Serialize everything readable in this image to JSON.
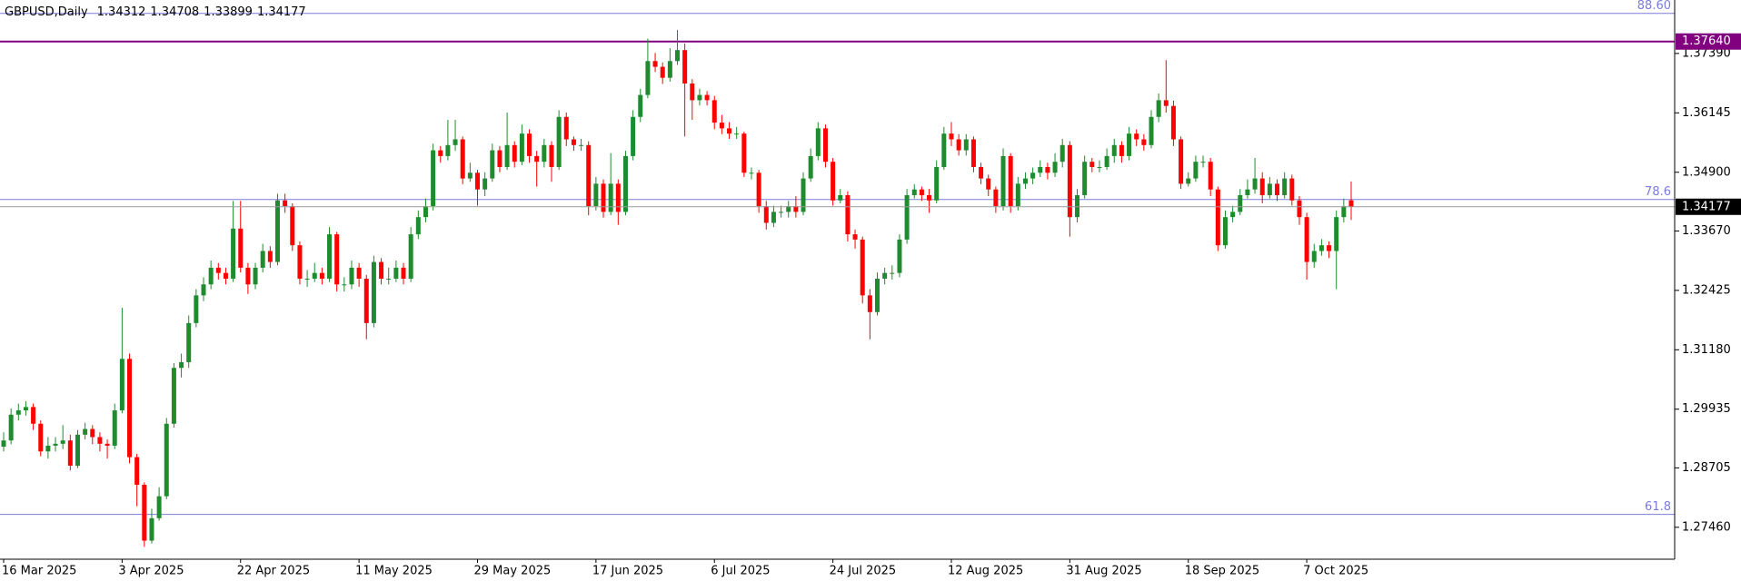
{
  "chart_data": {
    "type": "candlestick",
    "title": "GBPUSD,Daily",
    "up_color": "#1e8c2e",
    "down_color": "#ff0000",
    "ylim": [
      1.2681,
      1.3851
    ],
    "yticks": [
      {
        "value": 1.2746,
        "label": "1.27460"
      },
      1.28705,
      1.29935,
      {
        "value": 1.3118,
        "label": "1.31180"
      },
      1.32425,
      {
        "value": 1.3367,
        "label": "1.33670"
      },
      {
        "value": 1.349,
        "label": "1.34900"
      },
      1.36145,
      {
        "value": 1.3739,
        "label": "1.37390"
      }
    ],
    "x_labels": [
      "16 Mar 2025",
      "3 Apr 2025",
      "22 Apr 2025",
      "11 May 2025",
      "29 May 2025",
      "17 Jun 2025",
      "6 Jul 2025",
      "24 Jul 2025",
      "12 Aug 2025",
      "31 Aug 2025",
      "18 Sep 2025",
      "7 Oct 2025"
    ],
    "levels": [
      {
        "label": "88.60",
        "value": 1.3823,
        "color": "#7b7bdc"
      },
      {
        "label": "78.6",
        "value": 1.3433,
        "color": "#7b7bdc"
      },
      {
        "label": "61.8",
        "value": 1.2773,
        "color": "#7b7bdc"
      }
    ],
    "marked_level": {
      "value": 1.3764,
      "label": "1.37640",
      "color": "#800080"
    },
    "candles": [
      [
        1.2915,
        1.2945,
        1.2905,
        1.2928
      ],
      [
        1.2928,
        1.2995,
        1.292,
        1.2982
      ],
      [
        1.2982,
        1.3005,
        1.297,
        1.2991
      ],
      [
        1.2991,
        1.301,
        1.298,
        1.2998
      ],
      [
        1.2998,
        1.3005,
        1.295,
        1.2963
      ],
      [
        1.2963,
        1.297,
        1.2895,
        1.2905
      ],
      [
        1.2905,
        1.2935,
        1.289,
        1.2917
      ],
      [
        1.2917,
        1.2935,
        1.2905,
        1.2921
      ],
      [
        1.2921,
        1.296,
        1.291,
        1.2928
      ],
      [
        1.2928,
        1.294,
        1.2865,
        1.2875
      ],
      [
        1.2875,
        1.295,
        1.287,
        1.294
      ],
      [
        1.294,
        1.2965,
        1.293,
        1.2952
      ],
      [
        1.2952,
        1.296,
        1.292,
        1.2935
      ],
      [
        1.2935,
        1.2945,
        1.2905,
        1.2921
      ],
      [
        1.2921,
        1.293,
        1.289,
        1.2917
      ],
      [
        1.2917,
        1.3005,
        1.291,
        1.2991
      ],
      [
        1.2991,
        1.3206,
        1.2985,
        1.3099
      ],
      [
        1.3099,
        1.311,
        1.288,
        1.2893
      ],
      [
        1.2893,
        1.29,
        1.279,
        1.2835
      ],
      [
        1.2835,
        1.284,
        1.2705,
        1.2718
      ],
      [
        1.2718,
        1.2785,
        1.2712,
        1.2765
      ],
      [
        1.2765,
        1.283,
        1.276,
        1.2811
      ],
      [
        1.2811,
        1.2975,
        1.2805,
        1.2963
      ],
      [
        1.2963,
        1.309,
        1.2955,
        1.308
      ],
      [
        1.308,
        1.311,
        1.306,
        1.3092
      ],
      [
        1.3092,
        1.319,
        1.308,
        1.3174
      ],
      [
        1.3174,
        1.3245,
        1.3165,
        1.3232
      ],
      [
        1.3232,
        1.327,
        1.322,
        1.3255
      ],
      [
        1.3255,
        1.3305,
        1.3245,
        1.329
      ],
      [
        1.329,
        1.33,
        1.3265,
        1.3279
      ],
      [
        1.3279,
        1.329,
        1.3255,
        1.3267
      ],
      [
        1.3267,
        1.343,
        1.326,
        1.3372
      ],
      [
        1.3372,
        1.343,
        1.328,
        1.329
      ],
      [
        1.329,
        1.33,
        1.3235,
        1.3255
      ],
      [
        1.3255,
        1.33,
        1.3245,
        1.329
      ],
      [
        1.329,
        1.334,
        1.328,
        1.3325
      ],
      [
        1.3325,
        1.3335,
        1.329,
        1.3302
      ],
      [
        1.3302,
        1.3445,
        1.3295,
        1.3431
      ],
      [
        1.3431,
        1.3445,
        1.3405,
        1.3419
      ],
      [
        1.3419,
        1.3425,
        1.3325,
        1.3337
      ],
      [
        1.3337,
        1.3345,
        1.3255,
        1.3267
      ],
      [
        1.3267,
        1.3285,
        1.325,
        1.3267
      ],
      [
        1.3267,
        1.33,
        1.326,
        1.3279
      ],
      [
        1.3279,
        1.329,
        1.3255,
        1.3267
      ],
      [
        1.3267,
        1.3375,
        1.326,
        1.336
      ],
      [
        1.336,
        1.3365,
        1.324,
        1.3255
      ],
      [
        1.3255,
        1.327,
        1.324,
        1.3255
      ],
      [
        1.3255,
        1.3305,
        1.3245,
        1.329
      ],
      [
        1.329,
        1.33,
        1.325,
        1.3267
      ],
      [
        1.3267,
        1.3275,
        1.314,
        1.3174
      ],
      [
        1.3174,
        1.3315,
        1.3165,
        1.3302
      ],
      [
        1.3302,
        1.331,
        1.3255,
        1.3267
      ],
      [
        1.3267,
        1.329,
        1.3255,
        1.3267
      ],
      [
        1.3267,
        1.3305,
        1.326,
        1.329
      ],
      [
        1.329,
        1.33,
        1.3255,
        1.3267
      ],
      [
        1.3267,
        1.3375,
        1.326,
        1.336
      ],
      [
        1.336,
        1.341,
        1.335,
        1.3396
      ],
      [
        1.3396,
        1.3435,
        1.3385,
        1.3419
      ],
      [
        1.3419,
        1.355,
        1.341,
        1.3536
      ],
      [
        1.3536,
        1.3545,
        1.351,
        1.3524
      ],
      [
        1.3524,
        1.36,
        1.3515,
        1.3547
      ],
      [
        1.3547,
        1.36,
        1.3535,
        1.3559
      ],
      [
        1.3559,
        1.3565,
        1.3465,
        1.3477
      ],
      [
        1.3477,
        1.351,
        1.347,
        1.3489
      ],
      [
        1.3489,
        1.3495,
        1.342,
        1.3454
      ],
      [
        1.3454,
        1.349,
        1.344,
        1.3477
      ],
      [
        1.3477,
        1.355,
        1.347,
        1.3536
      ],
      [
        1.3536,
        1.3545,
        1.349,
        1.3501
      ],
      [
        1.3501,
        1.3615,
        1.3495,
        1.3547
      ],
      [
        1.3547,
        1.3555,
        1.35,
        1.3512
      ],
      [
        1.3512,
        1.359,
        1.3505,
        1.3571
      ],
      [
        1.3571,
        1.358,
        1.351,
        1.3524
      ],
      [
        1.3524,
        1.3535,
        1.346,
        1.3512
      ],
      [
        1.3512,
        1.356,
        1.35,
        1.3547
      ],
      [
        1.3547,
        1.3555,
        1.347,
        1.3501
      ],
      [
        1.3501,
        1.362,
        1.3495,
        1.3606
      ],
      [
        1.3606,
        1.3615,
        1.3545,
        1.3559
      ],
      [
        1.3559,
        1.3565,
        1.3535,
        1.3547
      ],
      [
        1.3547,
        1.356,
        1.3535,
        1.3547
      ],
      [
        1.3547,
        1.3555,
        1.34,
        1.3419
      ],
      [
        1.3419,
        1.348,
        1.341,
        1.3466
      ],
      [
        1.3466,
        1.3475,
        1.3395,
        1.3407
      ],
      [
        1.3407,
        1.353,
        1.34,
        1.3466
      ],
      [
        1.3466,
        1.3475,
        1.338,
        1.3407
      ],
      [
        1.3407,
        1.3535,
        1.34,
        1.3524
      ],
      [
        1.3524,
        1.362,
        1.3515,
        1.3606
      ],
      [
        1.3606,
        1.3665,
        1.3595,
        1.3652
      ],
      [
        1.3652,
        1.377,
        1.3645,
        1.3723
      ],
      [
        1.3723,
        1.374,
        1.37,
        1.3711
      ],
      [
        1.3711,
        1.372,
        1.3675,
        1.3688
      ],
      [
        1.3688,
        1.375,
        1.368,
        1.3723
      ],
      [
        1.3723,
        1.3788,
        1.3715,
        1.3746
      ],
      [
        1.3746,
        1.376,
        1.3565,
        1.3676
      ],
      [
        1.3676,
        1.3685,
        1.36,
        1.3641
      ],
      [
        1.3641,
        1.3665,
        1.363,
        1.3652
      ],
      [
        1.3652,
        1.366,
        1.363,
        1.3641
      ],
      [
        1.3641,
        1.365,
        1.358,
        1.3594
      ],
      [
        1.3594,
        1.361,
        1.357,
        1.3582
      ],
      [
        1.3582,
        1.3595,
        1.356,
        1.3571
      ],
      [
        1.3571,
        1.3585,
        1.356,
        1.3571
      ],
      [
        1.3571,
        1.3575,
        1.348,
        1.3489
      ],
      [
        1.3489,
        1.35,
        1.3475,
        1.3489
      ],
      [
        1.3489,
        1.3495,
        1.3405,
        1.3419
      ],
      [
        1.3419,
        1.343,
        1.337,
        1.3384
      ],
      [
        1.3384,
        1.342,
        1.3375,
        1.3407
      ],
      [
        1.3407,
        1.342,
        1.3395,
        1.3407
      ],
      [
        1.3407,
        1.343,
        1.3395,
        1.3419
      ],
      [
        1.3419,
        1.344,
        1.3395,
        1.3407
      ],
      [
        1.3407,
        1.349,
        1.34,
        1.3477
      ],
      [
        1.3477,
        1.354,
        1.347,
        1.3524
      ],
      [
        1.3524,
        1.3595,
        1.3515,
        1.3582
      ],
      [
        1.3582,
        1.359,
        1.35,
        1.3512
      ],
      [
        1.3512,
        1.352,
        1.342,
        1.3431
      ],
      [
        1.3431,
        1.3455,
        1.3425,
        1.3442
      ],
      [
        1.3442,
        1.345,
        1.3345,
        1.336
      ],
      [
        1.336,
        1.337,
        1.333,
        1.3349
      ],
      [
        1.3349,
        1.3355,
        1.3215,
        1.3232
      ],
      [
        1.3232,
        1.3245,
        1.314,
        1.3197
      ],
      [
        1.3197,
        1.328,
        1.319,
        1.3267
      ],
      [
        1.3267,
        1.329,
        1.3255,
        1.3279
      ],
      [
        1.3279,
        1.3295,
        1.3265,
        1.3279
      ],
      [
        1.3279,
        1.336,
        1.327,
        1.3349
      ],
      [
        1.3349,
        1.3455,
        1.334,
        1.3442
      ],
      [
        1.3442,
        1.3465,
        1.3435,
        1.3454
      ],
      [
        1.3454,
        1.346,
        1.343,
        1.3442
      ],
      [
        1.3442,
        1.3455,
        1.3405,
        1.3431
      ],
      [
        1.3431,
        1.3515,
        1.3425,
        1.3501
      ],
      [
        1.3501,
        1.3585,
        1.3495,
        1.3571
      ],
      [
        1.3571,
        1.3595,
        1.3545,
        1.3559
      ],
      [
        1.3559,
        1.357,
        1.3525,
        1.3536
      ],
      [
        1.3536,
        1.357,
        1.3525,
        1.3559
      ],
      [
        1.3559,
        1.3565,
        1.349,
        1.3501
      ],
      [
        1.3501,
        1.351,
        1.3465,
        1.3477
      ],
      [
        1.3477,
        1.3485,
        1.344,
        1.3454
      ],
      [
        1.3454,
        1.346,
        1.3405,
        1.3419
      ],
      [
        1.3419,
        1.354,
        1.341,
        1.3524
      ],
      [
        1.3524,
        1.353,
        1.3405,
        1.3419
      ],
      [
        1.3419,
        1.348,
        1.341,
        1.3466
      ],
      [
        1.3466,
        1.349,
        1.3455,
        1.3477
      ],
      [
        1.3477,
        1.35,
        1.3465,
        1.3489
      ],
      [
        1.3489,
        1.3515,
        1.348,
        1.3501
      ],
      [
        1.3501,
        1.351,
        1.3475,
        1.3489
      ],
      [
        1.3489,
        1.353,
        1.348,
        1.3512
      ],
      [
        1.3512,
        1.356,
        1.35,
        1.3547
      ],
      [
        1.3547,
        1.3555,
        1.3355,
        1.3396
      ],
      [
        1.3396,
        1.3455,
        1.3385,
        1.3442
      ],
      [
        1.3442,
        1.3525,
        1.3435,
        1.3512
      ],
      [
        1.3512,
        1.352,
        1.349,
        1.3501
      ],
      [
        1.3501,
        1.3515,
        1.349,
        1.3501
      ],
      [
        1.3501,
        1.354,
        1.3495,
        1.3524
      ],
      [
        1.3524,
        1.356,
        1.351,
        1.3547
      ],
      [
        1.3547,
        1.3555,
        1.351,
        1.3524
      ],
      [
        1.3524,
        1.3585,
        1.3515,
        1.3571
      ],
      [
        1.3571,
        1.358,
        1.3545,
        1.3559
      ],
      [
        1.3559,
        1.357,
        1.3535,
        1.3547
      ],
      [
        1.3547,
        1.362,
        1.354,
        1.3606
      ],
      [
        1.3606,
        1.3655,
        1.3595,
        1.3641
      ],
      [
        1.3641,
        1.3725,
        1.3615,
        1.3629
      ],
      [
        1.3629,
        1.364,
        1.3545,
        1.3559
      ],
      [
        1.3559,
        1.3565,
        1.3455,
        1.3466
      ],
      [
        1.3466,
        1.349,
        1.346,
        1.3477
      ],
      [
        1.3477,
        1.3525,
        1.347,
        1.3512
      ],
      [
        1.3512,
        1.3525,
        1.35,
        1.3512
      ],
      [
        1.3512,
        1.352,
        1.344,
        1.3454
      ],
      [
        1.3454,
        1.346,
        1.3325,
        1.3337
      ],
      [
        1.3337,
        1.341,
        1.333,
        1.3396
      ],
      [
        1.3396,
        1.342,
        1.3385,
        1.3407
      ],
      [
        1.3407,
        1.3455,
        1.34,
        1.3442
      ],
      [
        1.3442,
        1.3475,
        1.3435,
        1.3454
      ],
      [
        1.3454,
        1.352,
        1.3445,
        1.3477
      ],
      [
        1.3477,
        1.349,
        1.3425,
        1.3442
      ],
      [
        1.3442,
        1.348,
        1.3435,
        1.3466
      ],
      [
        1.3466,
        1.3475,
        1.343,
        1.3442
      ],
      [
        1.3442,
        1.349,
        1.3435,
        1.3477
      ],
      [
        1.3477,
        1.3485,
        1.342,
        1.3431
      ],
      [
        1.3431,
        1.344,
        1.338,
        1.3396
      ],
      [
        1.3396,
        1.3405,
        1.3265,
        1.3302
      ],
      [
        1.3302,
        1.334,
        1.329,
        1.3325
      ],
      [
        1.3325,
        1.335,
        1.3315,
        1.3337
      ],
      [
        1.3337,
        1.3345,
        1.331,
        1.3325
      ],
      [
        1.3325,
        1.341,
        1.3245,
        1.3396
      ],
      [
        1.3396,
        1.3435,
        1.3385,
        1.3419
      ],
      [
        1.34312,
        1.34708,
        1.33899,
        1.34177
      ]
    ]
  }
}
